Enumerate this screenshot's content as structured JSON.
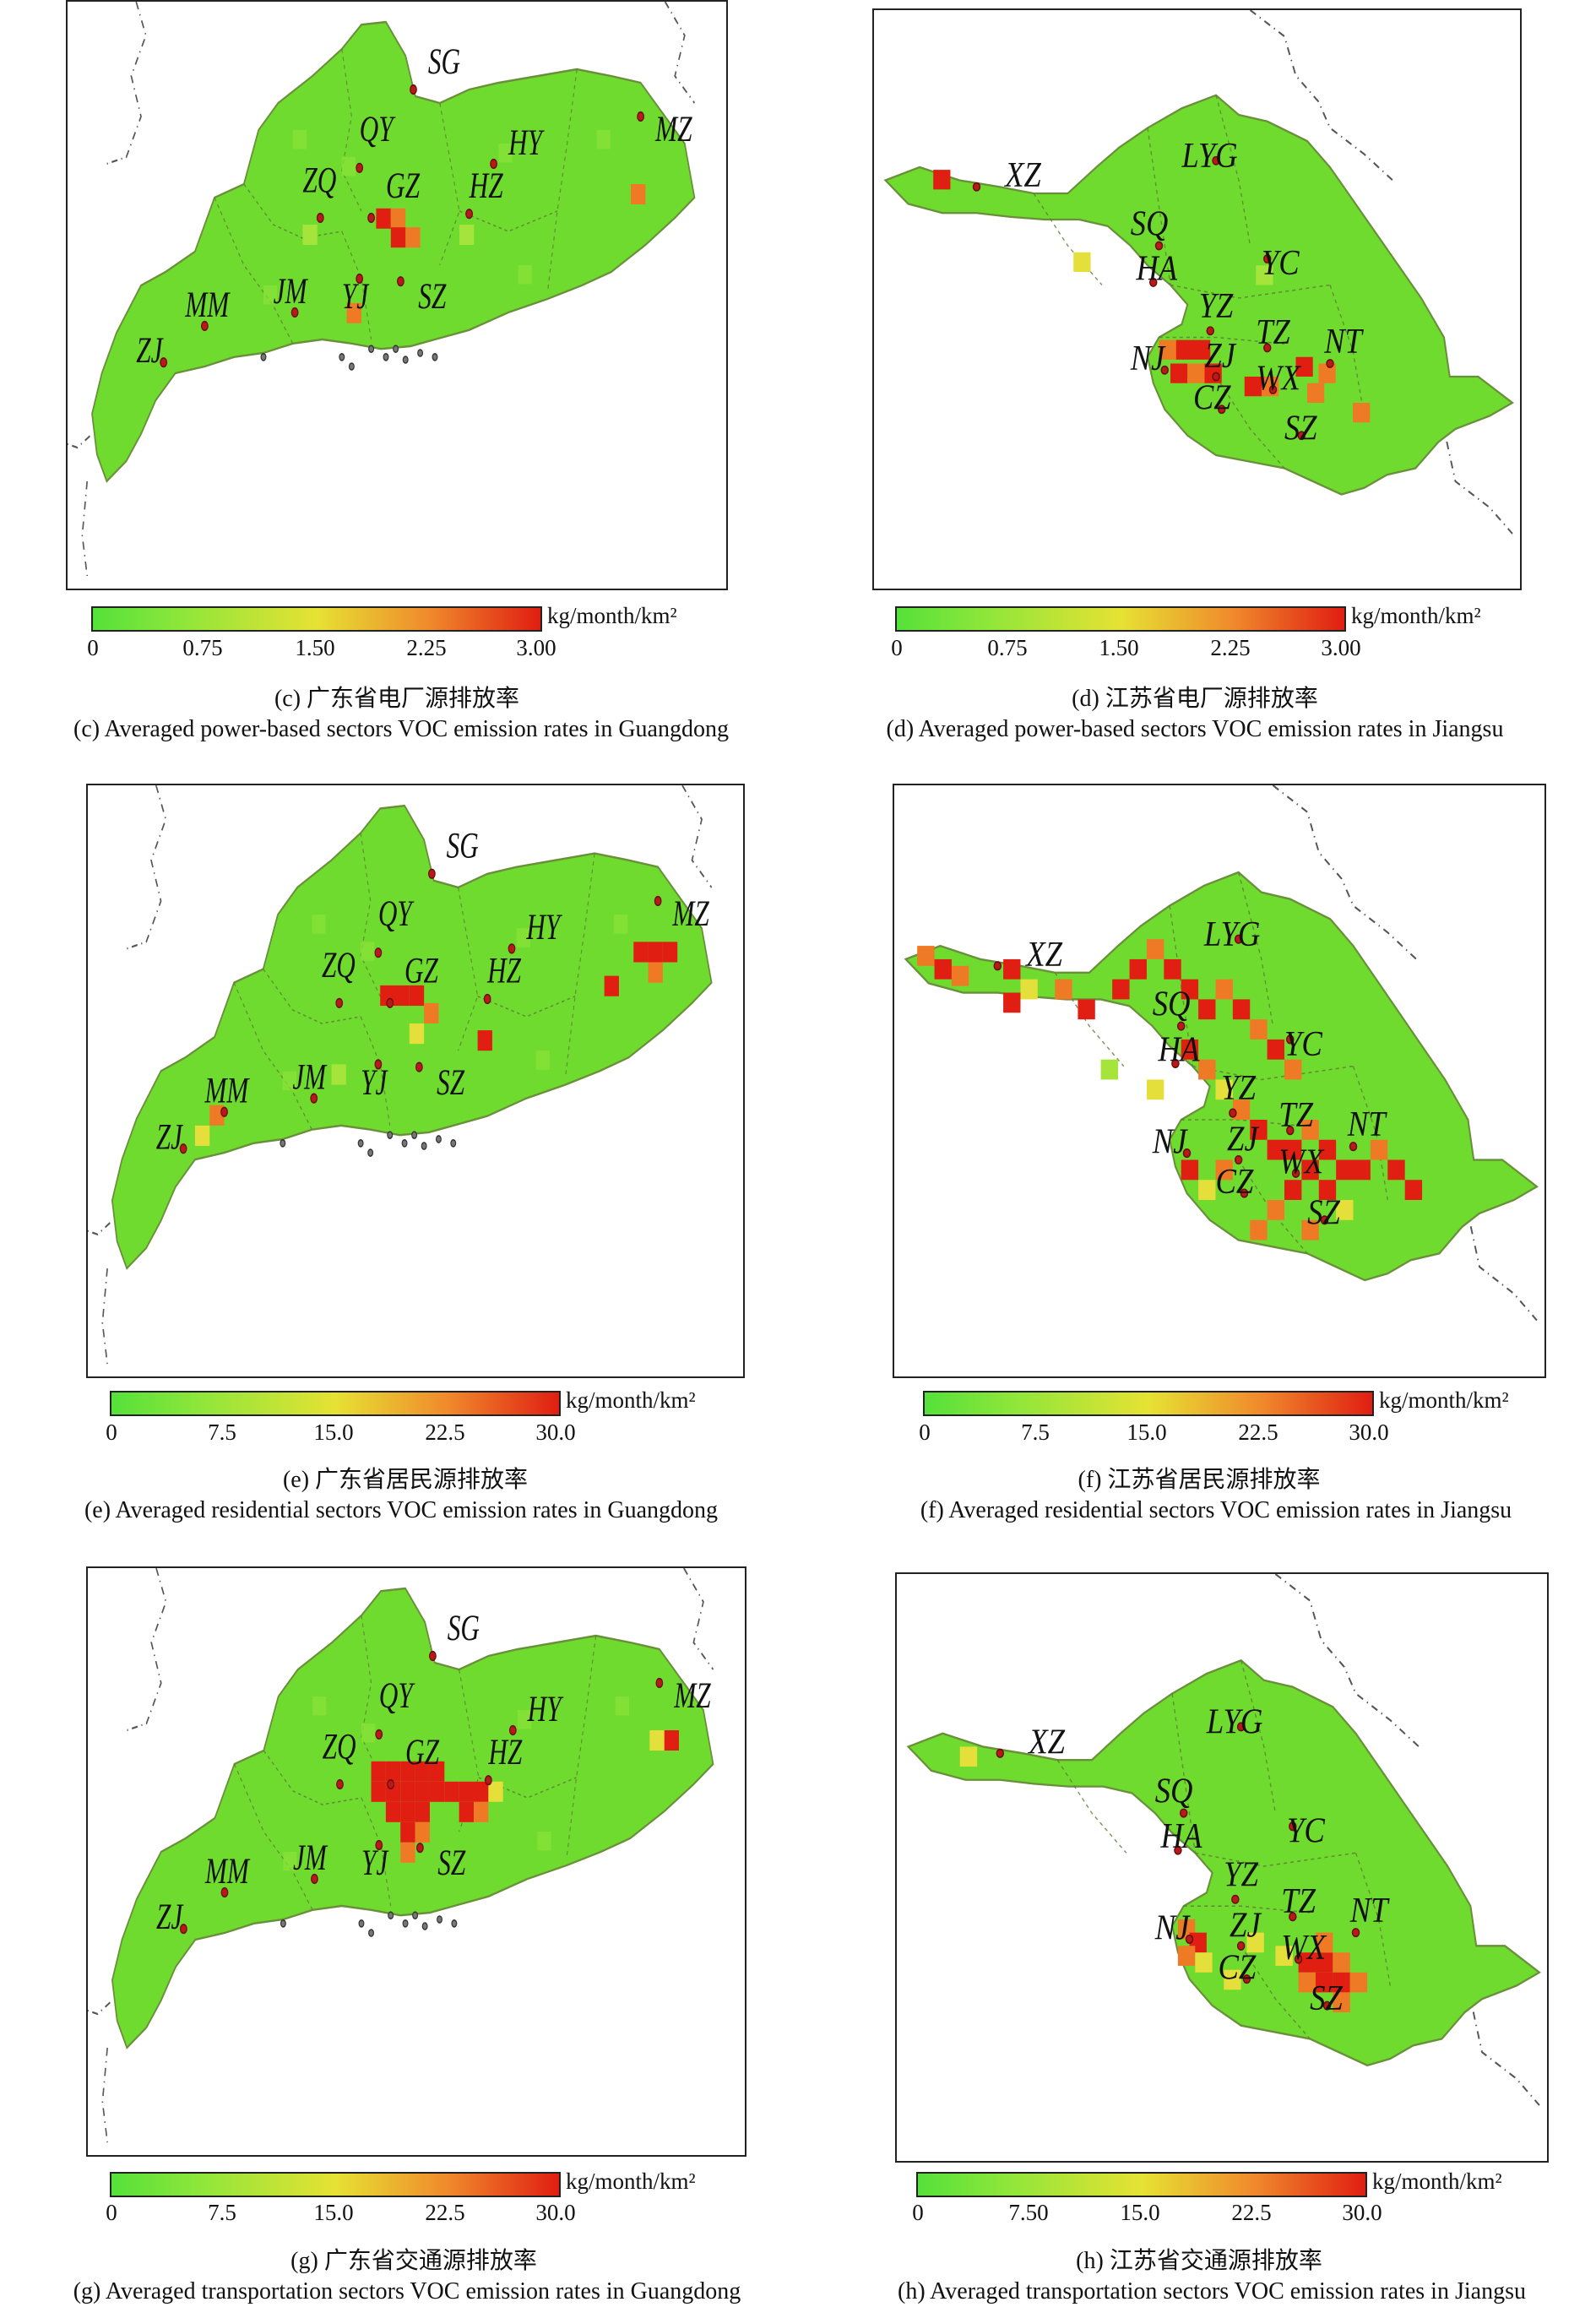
{
  "colors": {
    "low": "#55e13a",
    "mid": "#e6e233",
    "high": "#e01e12",
    "land": "#6fdb2e",
    "city_dot": "#b81919"
  },
  "panels": [
    {
      "region": "guangdong",
      "cn_caption": "(c) 广东省电厂源排放率",
      "en_caption": "(c) Averaged power-based sectors VOC emission rates in Guangdong",
      "unit": "kg/month/km²",
      "ticks": [
        "0",
        "0.75",
        "1.50",
        "2.25",
        "3.00"
      ],
      "scale_range": [
        0,
        3.0
      ],
      "cities": [
        "SG",
        "QY",
        "HY",
        "MZ",
        "ZQ",
        "GZ",
        "HZ",
        "SZ",
        "YJ",
        "JM",
        "MM",
        "ZJ"
      ]
    },
    {
      "region": "jiangsu",
      "cn_caption": "(d) 江苏省电厂源排放率",
      "en_caption": "(d) Averaged power-based sectors VOC emission rates in Jiangsu",
      "unit": "kg/month/km²",
      "ticks": [
        "0",
        "0.75",
        "1.50",
        "2.25",
        "3.00"
      ],
      "scale_range": [
        0,
        3.0
      ],
      "cities": [
        "LYG",
        "XZ",
        "SQ",
        "HA",
        "YC",
        "YZ",
        "TZ",
        "NT",
        "NJ",
        "ZJ",
        "WX",
        "CZ",
        "SZ"
      ]
    },
    {
      "region": "guangdong",
      "cn_caption": "(e) 广东省居民源排放率",
      "en_caption": "(e) Averaged residential sectors VOC emission rates in Guangdong",
      "unit": "kg/month/km²",
      "ticks": [
        "0",
        "7.5",
        "15.0",
        "22.5",
        "30.0"
      ],
      "scale_range": [
        0,
        30.0
      ],
      "cities": [
        "SG",
        "QY",
        "HY",
        "MZ",
        "ZQ",
        "GZ",
        "HZ",
        "SZ",
        "YJ",
        "JM",
        "MM",
        "ZJ"
      ]
    },
    {
      "region": "jiangsu",
      "cn_caption": "(f) 江苏省居民源排放率",
      "en_caption": "(f) Averaged residential sectors VOC emission rates in Jiangsu",
      "unit": "kg/month/km²",
      "ticks": [
        "0",
        "7.5",
        "15.0",
        "22.5",
        "30.0"
      ],
      "scale_range": [
        0,
        30.0
      ],
      "cities": [
        "LYG",
        "XZ",
        "SQ",
        "HA",
        "YC",
        "YZ",
        "TZ",
        "NT",
        "NJ",
        "ZJ",
        "WX",
        "CZ",
        "SZ"
      ]
    },
    {
      "region": "guangdong",
      "cn_caption": "(g) 广东省交通源排放率",
      "en_caption": "(g) Averaged transportation sectors VOC emission rates in Guangdong",
      "unit": "kg/month/km²",
      "ticks": [
        "0",
        "7.5",
        "15.0",
        "22.5",
        "30.0"
      ],
      "scale_range": [
        0,
        30.0
      ],
      "cities": [
        "SG",
        "QY",
        "HY",
        "MZ",
        "ZQ",
        "GZ",
        "HZ",
        "SZ",
        "YJ",
        "JM",
        "MM",
        "ZJ"
      ]
    },
    {
      "region": "jiangsu",
      "cn_caption": "(h) 江苏省交通源排放率",
      "en_caption": "(h) Averaged transportation sectors VOC emission rates in Jiangsu",
      "unit": "kg/month/km²",
      "ticks": [
        "0",
        "7.50",
        "15.0",
        "22.5",
        "30.0"
      ],
      "scale_range": [
        0,
        30.0
      ],
      "cities": [
        "LYG",
        "XZ",
        "SQ",
        "HA",
        "YC",
        "YZ",
        "TZ",
        "NT",
        "NJ",
        "ZJ",
        "WX",
        "CZ",
        "SZ"
      ]
    }
  ]
}
